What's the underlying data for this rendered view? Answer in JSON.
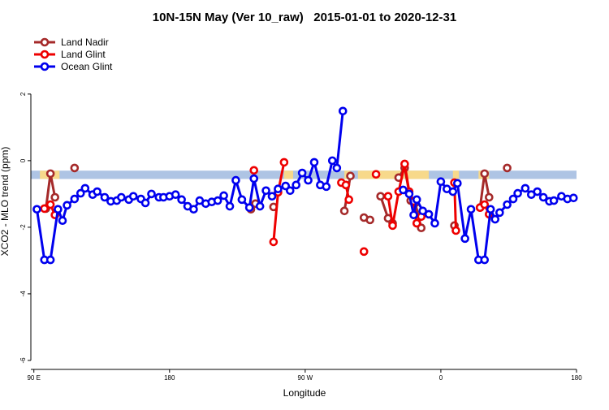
{
  "chart_data": {
    "type": "line",
    "title": "10N-15N May (Ver 10_raw)   2015-01-01 to 2020-12-31",
    "xlabel": "Longitude",
    "ylabel": "XCO2 - MLO trend (ppm)",
    "xlim": [
      88,
      450
    ],
    "ylim": [
      -6.27,
      3.85
    ],
    "xticks": [
      {
        "value": 90,
        "label": "90 E"
      },
      {
        "value": 180,
        "label": "180"
      },
      {
        "value": 270,
        "label": "90 W"
      },
      {
        "value": 360,
        "label": "0"
      },
      {
        "value": 450,
        "label": "180"
      }
    ],
    "yticks": [
      -6,
      -4,
      -2,
      0,
      2
    ],
    "legend": "top-left",
    "band": {
      "ylim": [
        -0.55,
        -0.3
      ],
      "color": "#aec4e4",
      "land_color": "#f7d98b",
      "land_ranges": [
        [
          94,
          107
        ],
        [
          256,
          262
        ],
        [
          296,
          300
        ],
        [
          305,
          352
        ],
        [
          368,
          372
        ],
        [
          385,
          392
        ]
      ]
    },
    "series": [
      {
        "name": "Land Nadir",
        "color": "#a52a2a",
        "x": [
          98,
          101,
          104,
          null,
          117,
          null,
          234,
          237,
          null,
          249,
          null,
          296,
          300,
          null,
          309,
          313,
          null,
          320,
          325,
          328,
          null,
          332,
          336,
          340,
          343,
          347,
          null,
          369,
          null,
          386,
          389,
          392,
          null,
          404
        ],
        "values": [
          -1.44,
          -0.39,
          -1.1,
          null,
          -0.22,
          null,
          -1.46,
          -1.29,
          null,
          -1.39,
          null,
          -1.51,
          -0.46,
          null,
          -1.71,
          -1.78,
          null,
          -1.07,
          -1.73,
          -1.88,
          null,
          -0.51,
          -0.22,
          -1.2,
          -1.27,
          -2.02,
          null,
          -1.95,
          null,
          -1.41,
          -0.39,
          -1.1,
          null,
          -0.22
        ]
      },
      {
        "name": "Land Glint",
        "color": "#ee0000",
        "x": [
          97,
          101,
          104,
          null,
          236,
          null,
          249,
          252,
          256,
          null,
          294,
          297,
          299,
          null,
          309,
          null,
          317,
          null,
          325,
          328,
          332,
          336,
          339,
          342,
          344,
          347,
          null,
          369,
          370,
          null,
          386,
          389,
          392
        ],
        "values": [
          -1.44,
          -1.32,
          -1.63,
          null,
          -0.29,
          null,
          -2.44,
          -0.95,
          -0.05,
          null,
          -0.66,
          -0.73,
          -1.17,
          null,
          -2.73,
          null,
          -0.41,
          null,
          -1.07,
          -1.95,
          -0.93,
          -0.1,
          -0.93,
          -1.22,
          -1.88,
          -1.68,
          null,
          -0.66,
          -2.1,
          null,
          -1.41,
          -1.32,
          -1.61
        ]
      },
      {
        "name": "Ocean Glint",
        "color": "#0000ee",
        "x": [
          92,
          97,
          101,
          106,
          109,
          112,
          117,
          121,
          124,
          129,
          132,
          137,
          141,
          145,
          148,
          153,
          156,
          161,
          164,
          168,
          173,
          176,
          180,
          184,
          188,
          192,
          196,
          200,
          204,
          208,
          212,
          216,
          220,
          224,
          228,
          233,
          236,
          240,
          244,
          248,
          252,
          257,
          260,
          264,
          268,
          272,
          276,
          280,
          284,
          288,
          291,
          295,
          null,
          335,
          339,
          342,
          344,
          348,
          352,
          356,
          360,
          364,
          368,
          371,
          376,
          380,
          385,
          389,
          393,
          396,
          399,
          404,
          408,
          411,
          416,
          420,
          424,
          428,
          432,
          435,
          440,
          444,
          448
        ],
        "values": [
          -1.46,
          -2.98,
          -2.98,
          -1.46,
          -1.8,
          -1.34,
          -1.15,
          -0.98,
          -0.83,
          -1.02,
          -0.93,
          -1.1,
          -1.22,
          -1.2,
          -1.1,
          -1.17,
          -1.07,
          -1.15,
          -1.27,
          -1.0,
          -1.1,
          -1.1,
          -1.07,
          -1.02,
          -1.17,
          -1.37,
          -1.46,
          -1.2,
          -1.29,
          -1.24,
          -1.2,
          -1.05,
          -1.37,
          -0.59,
          -1.17,
          -1.41,
          -0.54,
          -1.37,
          -0.9,
          -1.07,
          -0.85,
          -0.76,
          -0.9,
          -0.73,
          -0.37,
          -0.59,
          -0.05,
          -0.73,
          -0.78,
          0.0,
          -0.22,
          1.49,
          null,
          -0.88,
          -1.0,
          -1.63,
          -1.17,
          -1.51,
          -1.61,
          -1.88,
          -0.63,
          -0.85,
          -0.93,
          -0.68,
          -2.34,
          -1.46,
          -2.98,
          -2.98,
          -1.46,
          -1.76,
          -1.56,
          -1.32,
          -1.15,
          -0.98,
          -0.83,
          -1.02,
          -0.93,
          -1.1,
          -1.22,
          -1.2,
          -1.07,
          -1.15,
          -1.12
        ]
      }
    ]
  }
}
